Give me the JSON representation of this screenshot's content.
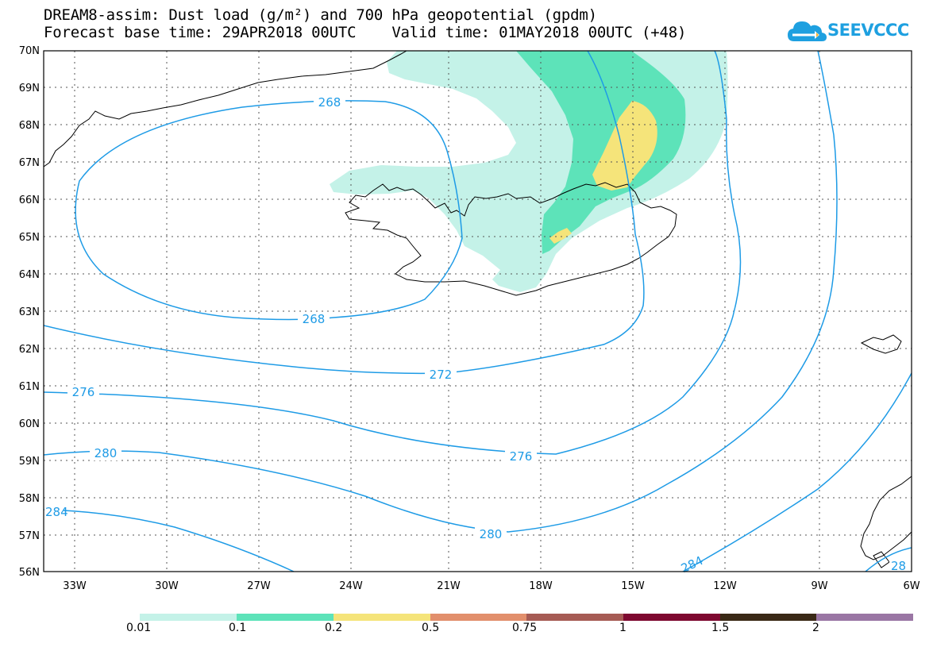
{
  "title": {
    "line1": "DREAM8-assim: Dust load (g/m²) and 700 hPa geopotential (gpdm)",
    "line2": "Forecast base time: 29APR2018 00UTC    Valid time: 01MAY2018 00UTC (+48)"
  },
  "logo": {
    "text": "SEEVCCC"
  },
  "map": {
    "lat_labels": [
      "70N",
      "69N",
      "68N",
      "67N",
      "66N",
      "65N",
      "64N",
      "63N",
      "62N",
      "61N",
      "60N",
      "59N",
      "58N",
      "57N",
      "56N"
    ],
    "lon_labels": [
      "33W",
      "30W",
      "27W",
      "24W",
      "21W",
      "18W",
      "15W",
      "12W",
      "9W",
      "6W"
    ],
    "contour_labels": [
      "268",
      "268",
      "272",
      "276",
      "276",
      "280",
      "280",
      "284",
      "284",
      "28"
    ],
    "colors": {
      "contour": "#1e9be6",
      "coast": "#000000"
    }
  },
  "colorbar": {
    "labels": [
      "0.01",
      "0.1",
      "0.2",
      "0.5",
      "0.75",
      "1",
      "1.5",
      "2"
    ],
    "colors": [
      "#c4f2e8",
      "#5de3b9",
      "#f5e47a",
      "#e28f6c",
      "#a65b54",
      "#7e0930",
      "#3a2916",
      "#9a76a4"
    ]
  }
}
